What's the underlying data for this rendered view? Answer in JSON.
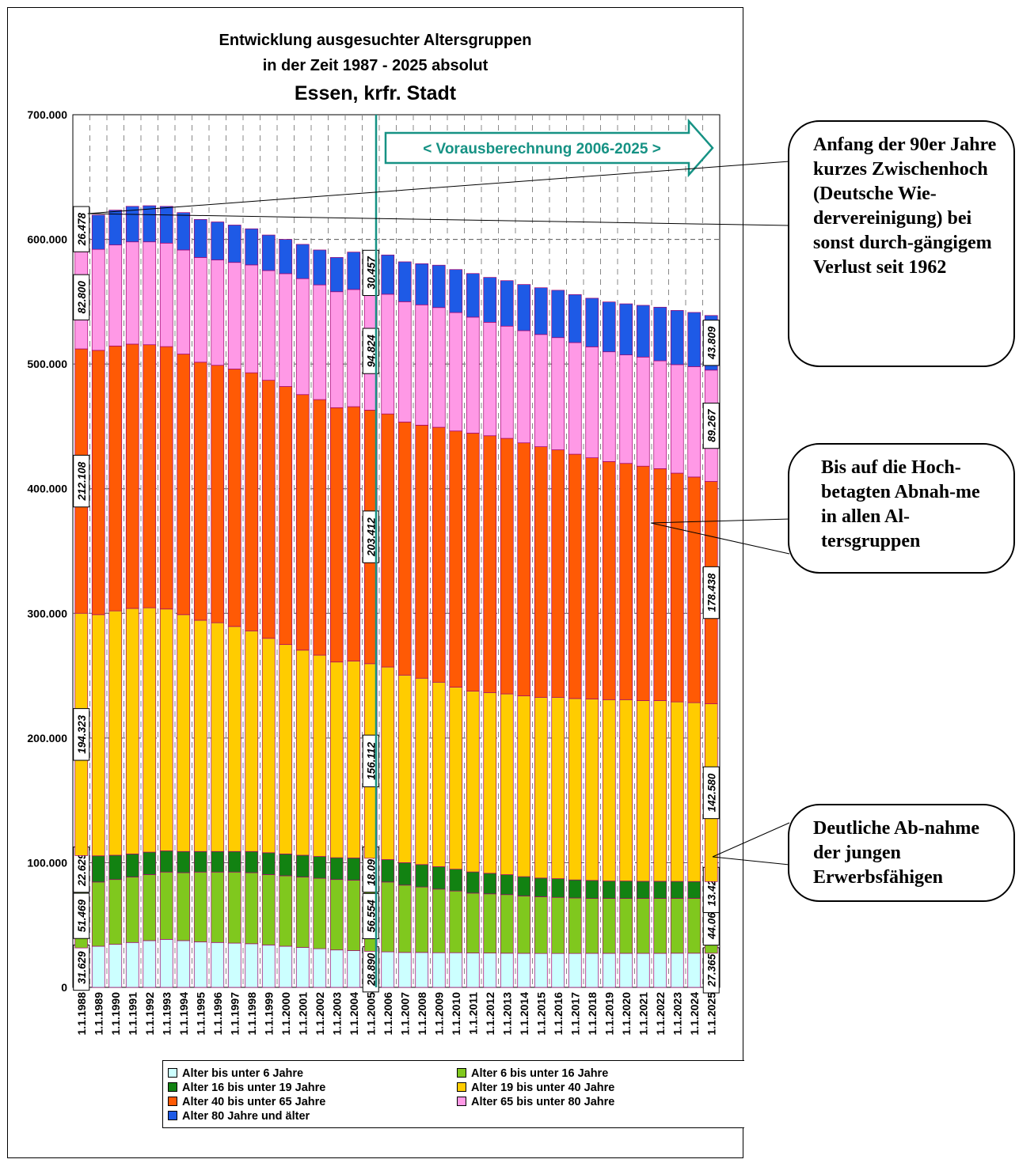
{
  "title": {
    "line1": "Entwicklung ausgesuchter Altersgruppen",
    "line2": "in der Zeit 1987 - 2025 absolut",
    "line3": "Essen, krfr. Stadt"
  },
  "projection_label": "< Vorausberechnung 2006-2025 >",
  "callouts": {
    "top": "Anfang der 90er Jahre kurzes Zwischenhoch (Deutsche Wie-dervereinigung) bei sonst durch-gängigem Verlust seit 1962",
    "middle": "Bis auf die Hoch-betagten Abnah-me in allen Al-tersgruppen",
    "bottom": "Deutliche Ab-nahme der jungen Erwerbsfähigen"
  },
  "colors": {
    "under6": "#ccffff",
    "6to16": "#80c81e",
    "16to19": "#128212",
    "19to40": "#ffcc00",
    "40to65": "#ff5a05",
    "65to80": "#ff99e6",
    "80plus": "#1e5ae6",
    "arrow": "#169284"
  },
  "chart_data": {
    "type": "bar",
    "stacked": true,
    "ylim": [
      0,
      700000
    ],
    "yticks": [
      "0",
      "100.000",
      "200.000",
      "300.000",
      "400.000",
      "500.000",
      "600.000",
      "700.000"
    ],
    "grid": true,
    "legend_position": "bottom",
    "categories": [
      "1.1.1988",
      "1.1.1989",
      "1.1.1990",
      "1.1.1991",
      "1.1.1992",
      "1.1.1993",
      "1.1.1994",
      "1.1.1995",
      "1.1.1996",
      "1.1.1997",
      "1.1.1998",
      "1.1.1999",
      "1.1.2000",
      "1.1.2001",
      "1.1.2002",
      "1.1.2003",
      "1.1.2004",
      "1.1.2005",
      "1.1.2006",
      "1.1.2007",
      "1.1.2008",
      "1.1.2009",
      "1.1.2010",
      "1.1.2011",
      "1.1.2012",
      "1.1.2013",
      "1.1.2014",
      "1.1.2015",
      "1.1.2016",
      "1.1.2017",
      "1.1.2018",
      "1.1.2019",
      "1.1.2020",
      "1.1.2021",
      "1.1.2022",
      "1.1.2023",
      "1.1.2024",
      "1.1.2025"
    ],
    "series": [
      {
        "name": "Alter bis unter 6 Jahre",
        "key": "under6",
        "values": [
          31629,
          33000,
          34500,
          36000,
          37500,
          38500,
          37500,
          36500,
          36000,
          35500,
          35000,
          34000,
          33000,
          32000,
          31000,
          30000,
          29500,
          28890,
          28500,
          28000,
          28000,
          27800,
          27800,
          27600,
          27500,
          27400,
          27300,
          27200,
          27200,
          27200,
          27300,
          27300,
          27300,
          27300,
          27300,
          27400,
          27400,
          27365
        ]
      },
      {
        "name": "Alter 6 bis unter 16 Jahre",
        "key": "6to16",
        "values": [
          51469,
          51500,
          52000,
          52500,
          53000,
          54000,
          54500,
          56000,
          56500,
          57000,
          57000,
          56500,
          56500,
          56500,
          56500,
          56500,
          56500,
          56554,
          56000,
          54000,
          52500,
          51000,
          49500,
          48000,
          47500,
          47000,
          46000,
          45500,
          45000,
          44500,
          44000,
          44000,
          44000,
          44000,
          44000,
          44000,
          44000,
          44060
        ]
      },
      {
        "name": "Alter 16 bis unter 19 Jahre",
        "key": "16to19",
        "values": [
          22629,
          21000,
          19500,
          18500,
          18000,
          17000,
          17000,
          16500,
          16500,
          16500,
          17000,
          17500,
          17500,
          17500,
          17500,
          17500,
          17800,
          18099,
          18000,
          18000,
          18000,
          18000,
          17500,
          17000,
          16500,
          16000,
          15500,
          15000,
          15000,
          14500,
          14500,
          14000,
          14000,
          13800,
          13800,
          13600,
          13500,
          13421
        ]
      },
      {
        "name": "Alter 19 bis unter 40 Jahre",
        "key": "19to40",
        "values": [
          194323,
          193500,
          196000,
          197000,
          196000,
          194000,
          190000,
          185500,
          183500,
          180500,
          177000,
          172000,
          168000,
          164500,
          161500,
          157000,
          158000,
          156112,
          154500,
          150500,
          149500,
          148000,
          146000,
          145000,
          145000,
          145000,
          145000,
          145000,
          145500,
          145500,
          145500,
          145500,
          145500,
          145000,
          145000,
          144000,
          143500,
          142580
        ]
      },
      {
        "name": "Alter 40 bis unter 65 Jahre",
        "key": "40to65",
        "values": [
          212108,
          212000,
          212500,
          212000,
          211000,
          210500,
          209000,
          207000,
          206500,
          206500,
          207000,
          207000,
          207000,
          205000,
          205000,
          204000,
          204000,
          203412,
          203000,
          203000,
          203000,
          204500,
          205500,
          207000,
          206000,
          205000,
          203000,
          201000,
          198500,
          196000,
          193500,
          191000,
          189500,
          188000,
          186000,
          183500,
          181000,
          178438
        ]
      },
      {
        "name": "Alter 65 bis unter 80 Jahre",
        "key": "65to80",
        "values": [
          82800,
          81000,
          81000,
          82000,
          82500,
          83000,
          83500,
          84000,
          84500,
          85500,
          86500,
          88000,
          90500,
          93000,
          92000,
          93000,
          94000,
          94824,
          96000,
          96500,
          96500,
          96000,
          95000,
          93000,
          91000,
          90000,
          90000,
          90000,
          90000,
          89500,
          89000,
          88000,
          87000,
          87500,
          86500,
          87000,
          88500,
          89267
        ]
      },
      {
        "name": "Alter 80 Jahre und älter",
        "key": "80plus",
        "values": [
          26478,
          27500,
          28000,
          28500,
          29000,
          29500,
          30000,
          30500,
          30500,
          30000,
          29000,
          28500,
          27500,
          27500,
          28000,
          27500,
          30000,
          30457,
          31500,
          32000,
          33000,
          34000,
          34500,
          35000,
          36000,
          36500,
          37000,
          37500,
          38000,
          38500,
          39000,
          40000,
          41000,
          41500,
          43000,
          43500,
          43500,
          43809
        ]
      }
    ],
    "data_labels": [
      {
        "category": "1.1.1988",
        "labels": [
          "31.629",
          "51.469",
          "22.629",
          "194.323",
          "212.108",
          "82.800",
          "26.478"
        ]
      },
      {
        "category": "1.1.2005",
        "labels": [
          "28.890",
          "56.554",
          "18.099",
          "156.112",
          "203.412",
          "94.824",
          "30.457"
        ]
      },
      {
        "category": "1.1.2025",
        "labels": [
          "27.365",
          "44.06",
          "13.421",
          "142.580",
          "178.438",
          "89.267",
          "43.809"
        ]
      }
    ]
  }
}
